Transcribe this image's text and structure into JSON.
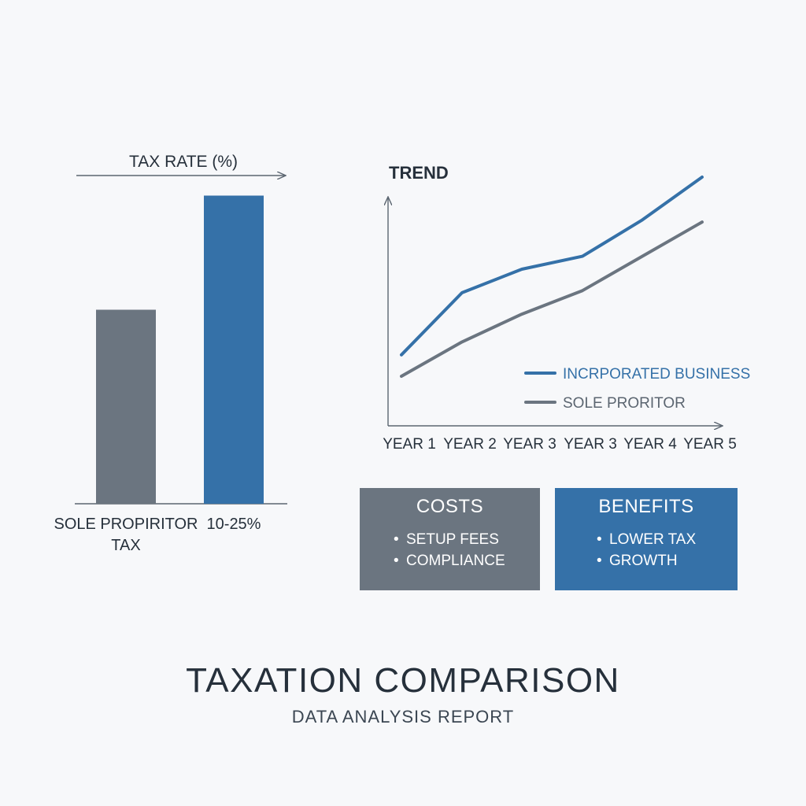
{
  "chart_data": [
    {
      "type": "bar",
      "title": "TAX RATE (%)",
      "categories": [
        "SOLE PROPIRITOR TAX",
        "10-25%"
      ],
      "values": [
        34,
        54
      ],
      "ylim": [
        0,
        56
      ],
      "colors": [
        "#6b7580",
        "#3571a8"
      ],
      "category_labels": [
        {
          "lines": [
            "SOLE PROPIRITOR",
            "TAX"
          ]
        },
        {
          "lines": [
            "10-25%"
          ]
        }
      ]
    },
    {
      "type": "line",
      "title": "TREND",
      "categories": [
        "YEAR 1",
        "YEAR 2",
        "YEAR 3",
        "YEAR 3",
        "YEAR 4",
        "YEAR 5"
      ],
      "ylim": [
        0,
        100
      ],
      "series": [
        {
          "name": "INCRPORATED BUSINESS",
          "color": "#3571a8",
          "values": [
            17,
            46,
            57,
            63,
            80,
            100
          ]
        },
        {
          "name": "SOLE PRORITOR",
          "color": "#6b7580",
          "values": [
            7,
            23,
            36,
            47,
            63,
            79
          ]
        }
      ]
    }
  ],
  "costs": {
    "title": "COSTS",
    "color": "#6b7580",
    "items": [
      "SETUP FEES",
      "COMPLIANCE"
    ]
  },
  "benefits": {
    "title": "BENEFITS",
    "color": "#3571a8",
    "items": [
      "LOWER TAX",
      "GROWTH"
    ]
  },
  "footer": {
    "title": "TAXATION COMPARISON",
    "subtitle": "DATA ANALYSIS REPORT"
  }
}
